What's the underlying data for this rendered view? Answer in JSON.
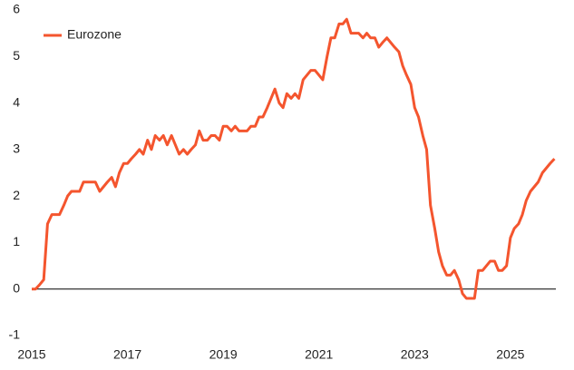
{
  "chart_data": {
    "type": "line",
    "x": [
      2015.0,
      2015.08,
      2015.17,
      2015.25,
      2015.33,
      2015.42,
      2015.5,
      2015.58,
      2015.67,
      2015.75,
      2015.83,
      2015.92,
      2016.0,
      2016.08,
      2016.17,
      2016.25,
      2016.33,
      2016.42,
      2016.5,
      2016.58,
      2016.67,
      2016.75,
      2016.83,
      2016.92,
      2017.0,
      2017.08,
      2017.17,
      2017.25,
      2017.33,
      2017.42,
      2017.5,
      2017.58,
      2017.67,
      2017.75,
      2017.83,
      2017.92,
      2018.0,
      2018.08,
      2018.17,
      2018.25,
      2018.33,
      2018.42,
      2018.5,
      2018.58,
      2018.67,
      2018.75,
      2018.83,
      2018.92,
      2019.0,
      2019.08,
      2019.17,
      2019.25,
      2019.33,
      2019.42,
      2019.5,
      2019.58,
      2019.67,
      2019.75,
      2019.83,
      2019.92,
      2020.0,
      2020.08,
      2020.17,
      2020.25,
      2020.33,
      2020.42,
      2020.5,
      2020.58,
      2020.67,
      2020.75,
      2020.83,
      2020.92,
      2021.0,
      2021.08,
      2021.17,
      2021.25,
      2021.33,
      2021.42,
      2021.5,
      2021.58,
      2021.67,
      2021.75,
      2021.83,
      2021.92,
      2022.0,
      2022.08,
      2022.17,
      2022.25,
      2022.33,
      2022.42,
      2022.5,
      2022.58,
      2022.67,
      2022.75,
      2022.83,
      2022.92,
      2023.0,
      2023.08,
      2023.17,
      2023.25,
      2023.33,
      2023.42,
      2023.5,
      2023.58,
      2023.67,
      2023.75,
      2023.83,
      2023.92,
      2024.0,
      2024.08,
      2024.17,
      2024.25,
      2024.33,
      2024.42,
      2024.5,
      2024.58,
      2024.67,
      2024.75,
      2024.83,
      2024.92,
      2025.0,
      2025.08,
      2025.17,
      2025.25,
      2025.33,
      2025.42,
      2025.5,
      2025.58,
      2025.67,
      2025.75,
      2025.83,
      2025.92
    ],
    "series": [
      {
        "name": "Eurozone",
        "color": "#f4552e",
        "values": [
          0,
          0,
          0.1,
          0.2,
          1.4,
          1.6,
          1.6,
          1.6,
          1.8,
          2.0,
          2.1,
          2.1,
          2.1,
          2.3,
          2.3,
          2.3,
          2.3,
          2.1,
          2.2,
          2.3,
          2.4,
          2.2,
          2.5,
          2.7,
          2.7,
          2.8,
          2.9,
          3.0,
          2.9,
          3.2,
          3.0,
          3.3,
          3.2,
          3.3,
          3.1,
          3.3,
          3.1,
          2.9,
          3.0,
          2.9,
          3.0,
          3.1,
          3.4,
          3.2,
          3.2,
          3.3,
          3.3,
          3.2,
          3.5,
          3.5,
          3.4,
          3.5,
          3.4,
          3.4,
          3.4,
          3.5,
          3.5,
          3.7,
          3.7,
          3.9,
          4.1,
          4.3,
          4.0,
          3.9,
          4.2,
          4.1,
          4.2,
          4.1,
          4.5,
          4.6,
          4.7,
          4.7,
          4.6,
          4.5,
          5.0,
          5.4,
          5.4,
          5.7,
          5.7,
          5.8,
          5.5,
          5.5,
          5.5,
          5.4,
          5.5,
          5.4,
          5.4,
          5.2,
          5.3,
          5.4,
          5.3,
          5.2,
          5.1,
          4.8,
          4.6,
          4.4,
          3.9,
          3.7,
          3.3,
          3.0,
          1.8,
          1.3,
          0.8,
          0.5,
          0.3,
          0.3,
          0.4,
          0.2,
          -0.1,
          -0.2,
          -0.2,
          -0.2,
          0.4,
          0.4,
          0.5,
          0.6,
          0.6,
          0.4,
          0.4,
          0.5,
          1.1,
          1.3,
          1.4,
          1.6,
          1.9,
          2.1,
          2.2,
          2.3,
          2.5,
          2.6,
          2.7,
          2.8
        ]
      }
    ],
    "xlim": [
      2015,
      2025.95
    ],
    "xticks": [
      2015,
      2017,
      2019,
      2021,
      2023,
      2025
    ],
    "ylim": [
      -1,
      6
    ],
    "yticks": [
      -1,
      0,
      1,
      2,
      3,
      4,
      5,
      6
    ],
    "legend": "top-left"
  }
}
